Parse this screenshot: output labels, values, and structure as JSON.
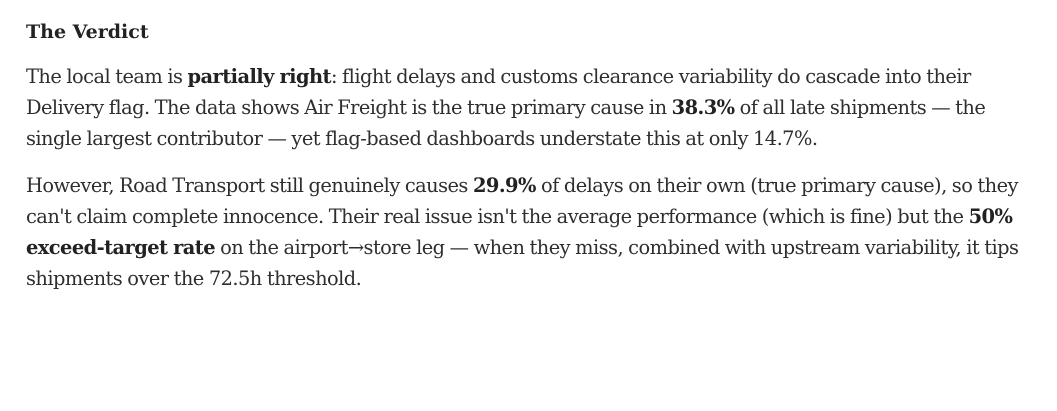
{
  "verdict": {
    "title": "The Verdict",
    "p1": {
      "s1": "The local team is ",
      "b1": "partially right",
      "s2": ": flight delays and customs clearance variability do cascade into their Delivery flag. The data shows Air Freight is the true primary cause in ",
      "b2": "38.3%",
      "s3": " of all late shipments — the single largest contributor — yet flag-based dashboards understate this at only 14.7%."
    },
    "p2": {
      "s1": "However, Road Transport still genuinely causes ",
      "b1": "29.9%",
      "s2": " of delays on their own (true primary cause), so they can't claim complete innocence. Their real issue isn't the average performance (which is fine) but the ",
      "b2": "50% exceed-target rate",
      "s3": " on the airport→store leg — when they miss, combined with upstream variability, it tips shipments over the 72.5h threshold."
    }
  }
}
